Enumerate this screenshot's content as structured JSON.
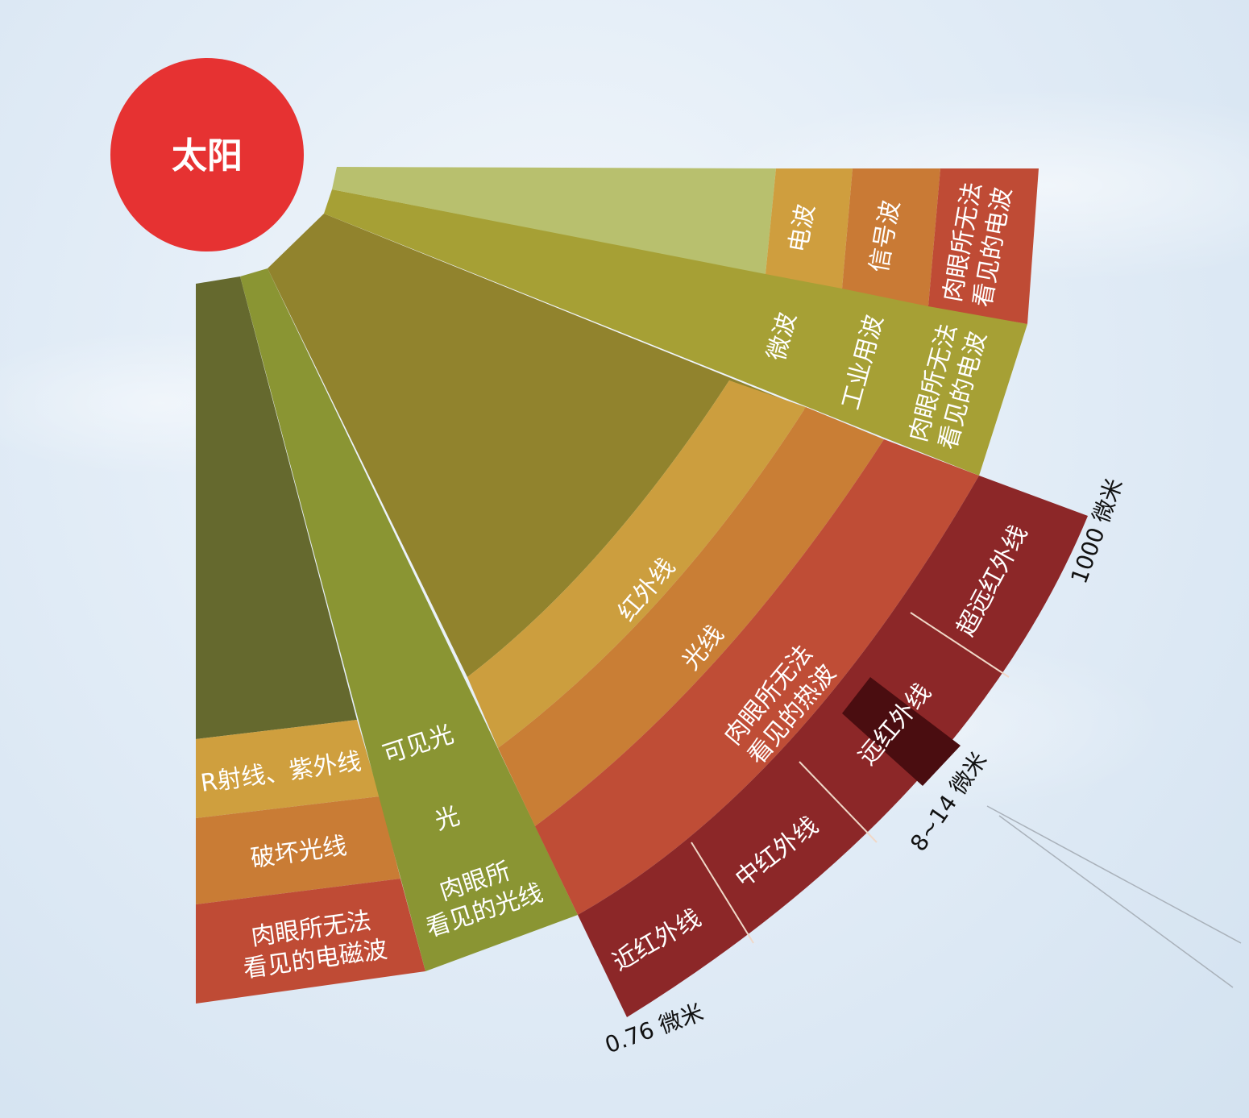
{
  "sun": {
    "label": "太阳",
    "color": "#e63232"
  },
  "uv_column": {
    "labels": {
      "rays": "R射线、紫外线",
      "destroy": "破坏光线",
      "invisible": "肉眼所无法看见的电磁波"
    },
    "colors": {
      "main": "#65692e",
      "rays": "#cf9f3e",
      "destroy": "#c97c35",
      "invisible": "#bf4b35"
    }
  },
  "visible_column": {
    "labels": {
      "visible": "可见光",
      "light": "光",
      "eye": "肉眼所看见的光线"
    },
    "color": "#8a9533"
  },
  "infrared": {
    "labels": {
      "infrared": "红外线",
      "rays": "光线",
      "heat": "肉眼所无法看见的热波"
    },
    "colors": {
      "main": "#91832d",
      "infrared": "#cc9e3e",
      "rays": "#c97e35",
      "heat": "#bf4d36",
      "subbands": "#8c2728",
      "highlight": "#4a0d10"
    },
    "subbands": [
      "近红外线",
      "中红外线",
      "远红外线",
      "超远红外线"
    ],
    "wavelengths": [
      "0.76 微米",
      "8~14 微米",
      "1000 微米"
    ]
  },
  "microwave": {
    "labels": [
      "微波",
      "工业用波",
      "肉眼所无法看见的电波"
    ],
    "color": "#a6a035"
  },
  "radio": {
    "labels": [
      "电波",
      "信号波",
      "肉眼所无法看见的电波"
    ],
    "colors": {
      "main": "#b8c06e",
      "radio": "#cf9e3e",
      "signal": "#c97a35",
      "invisible": "#bf4b35"
    }
  }
}
